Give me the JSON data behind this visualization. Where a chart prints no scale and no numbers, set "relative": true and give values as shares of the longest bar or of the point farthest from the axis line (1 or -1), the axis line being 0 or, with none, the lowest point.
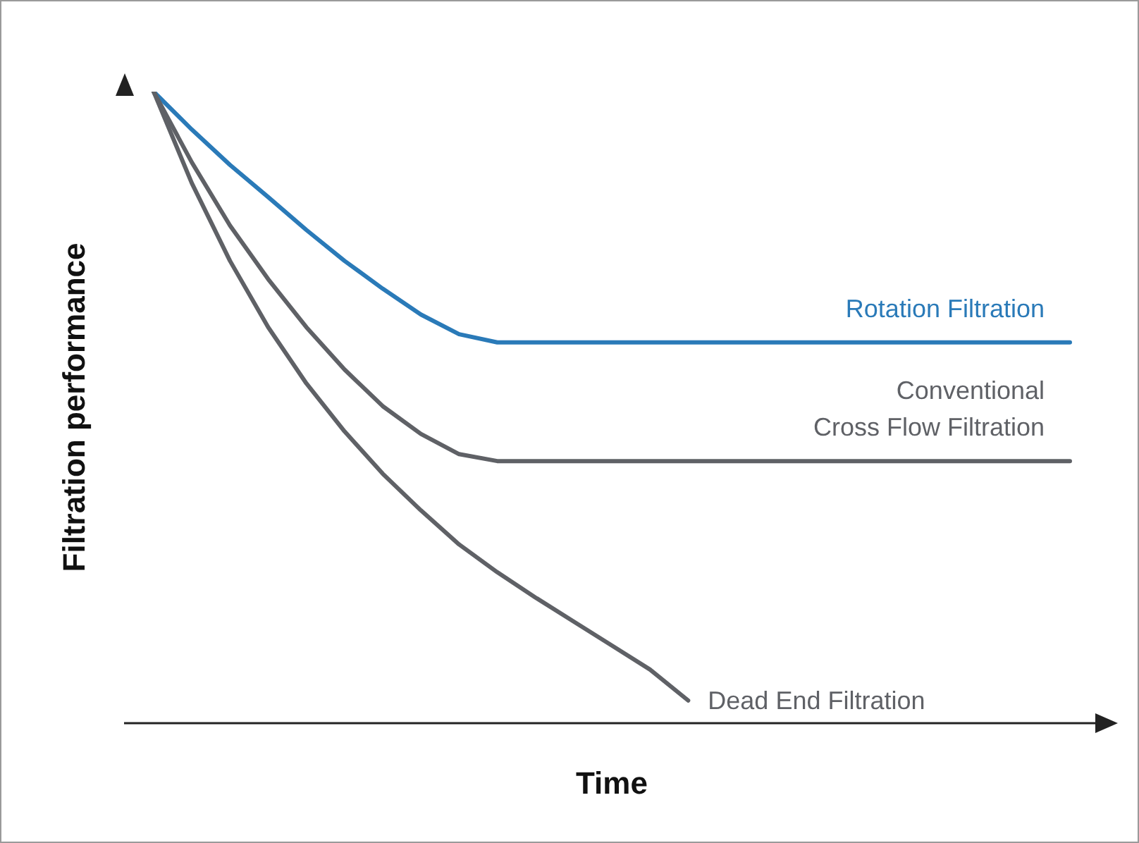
{
  "chart_data": {
    "type": "line",
    "relative": true,
    "xlabel": "Time",
    "ylabel": "Filtration performance",
    "legend": false,
    "grid": false,
    "marker": "none",
    "line_style": "solid",
    "categories": [
      null,
      null,
      null,
      null,
      null,
      null,
      null,
      null,
      null,
      null,
      null,
      null,
      null,
      null,
      null,
      null,
      null,
      null,
      null,
      null,
      null,
      null,
      null,
      null,
      null
    ],
    "series": [
      {
        "name": "Rotation Filtration",
        "color": "#2a7ab8",
        "values": [
          1,
          0.94,
          0.884,
          0.833,
          0.781,
          0.732,
          0.688,
          0.647,
          0.616,
          0.603,
          0.603,
          0.603,
          0.603,
          0.603,
          0.603,
          0.603,
          0.603,
          0.603,
          0.603,
          0.603,
          0.603,
          0.603,
          0.603,
          0.603,
          0.603
        ]
      },
      {
        "name": "Conventional Cross Flow Filtration",
        "color": "#5f6166",
        "values": [
          1,
          0.888,
          0.788,
          0.703,
          0.627,
          0.56,
          0.502,
          0.458,
          0.426,
          0.415,
          0.415,
          0.415,
          0.415,
          0.415,
          0.415,
          0.415,
          0.415,
          0.415,
          0.415,
          0.415,
          0.415,
          0.415,
          0.415,
          0.415,
          0.415
        ]
      },
      {
        "name": "Dead End Filtration",
        "color": "#5f6166",
        "values": [
          1,
          0.855,
          0.732,
          0.627,
          0.538,
          0.462,
          0.395,
          0.337,
          0.283,
          0.239,
          0.199,
          0.161,
          0.123,
          0.085,
          0.036,
          null,
          null,
          null,
          null,
          null,
          null,
          null,
          null,
          null,
          null
        ]
      }
    ]
  }
}
